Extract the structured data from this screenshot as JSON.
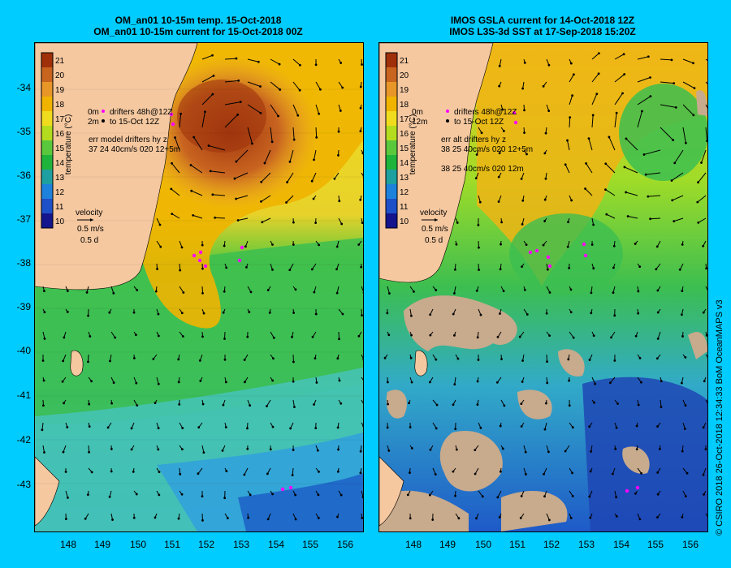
{
  "left_panel": {
    "title_line1": "OM_an01 10-15m temp. 15-Oct-2018",
    "title_line2": "OM_an01 10-15m current for 15-Oct-2018 00Z",
    "legend_line1": "drifters 48h@12Z",
    "legend_line2": "to 15-Oct 12Z",
    "legend_line3": "err model drifters hy z",
    "legend_line4": "37 24 40cm/s 020 12+5m",
    "legend_prefix1": "0m",
    "legend_prefix2": "2m"
  },
  "right_panel": {
    "title_line1": "IMOS GSLA current for 14-Oct-2018 12Z",
    "title_line2": "IMOS L3S-3d SST at 17-Sep-2018 15:20Z",
    "legend_line1": "drifters 48h@12Z",
    "legend_line2": "to 15-Oct 12Z",
    "legend_line3": "err alt drifters hy z",
    "legend_line4": "38 25 40cm/s 020 12+5m",
    "legend_line5": "38 25 40cm/s 020 12m",
    "legend_prefix1": "0m",
    "legend_prefix2": "12m"
  },
  "colorbar": {
    "label": "temperature (°C)",
    "ticks": [
      "21",
      "20",
      "19",
      "18",
      "17",
      "16",
      "15",
      "14",
      "13",
      "12",
      "11",
      "10"
    ],
    "colors": [
      "#a0300a",
      "#c8641e",
      "#e89628",
      "#f0b400",
      "#f0dc1e",
      "#b4dc1e",
      "#5ac83c",
      "#1eb43c",
      "#1ea0a0",
      "#1e82dc",
      "#1e50c8",
      "#14148c"
    ]
  },
  "velocity_key": {
    "title": "velocity",
    "speed": "0.5 m/s",
    "duration": "0.5 d"
  },
  "y_axis": [
    "-34",
    "-35",
    "-36",
    "-37",
    "-38",
    "-39",
    "-40",
    "-41",
    "-42",
    "-43"
  ],
  "x_axis": [
    "148",
    "149",
    "150",
    "151",
    "152",
    "153",
    "154",
    "155",
    "156"
  ],
  "credit": "© CSIRO 2018   26-Oct-2018 12:34:33 BoM OceanMAPS v3",
  "colors": {
    "background": "#00ccff",
    "land": "#f5c8a0",
    "no_data": "#c8aa8c",
    "drifter": "#ff00ff",
    "warm_core": "#b4501e"
  }
}
